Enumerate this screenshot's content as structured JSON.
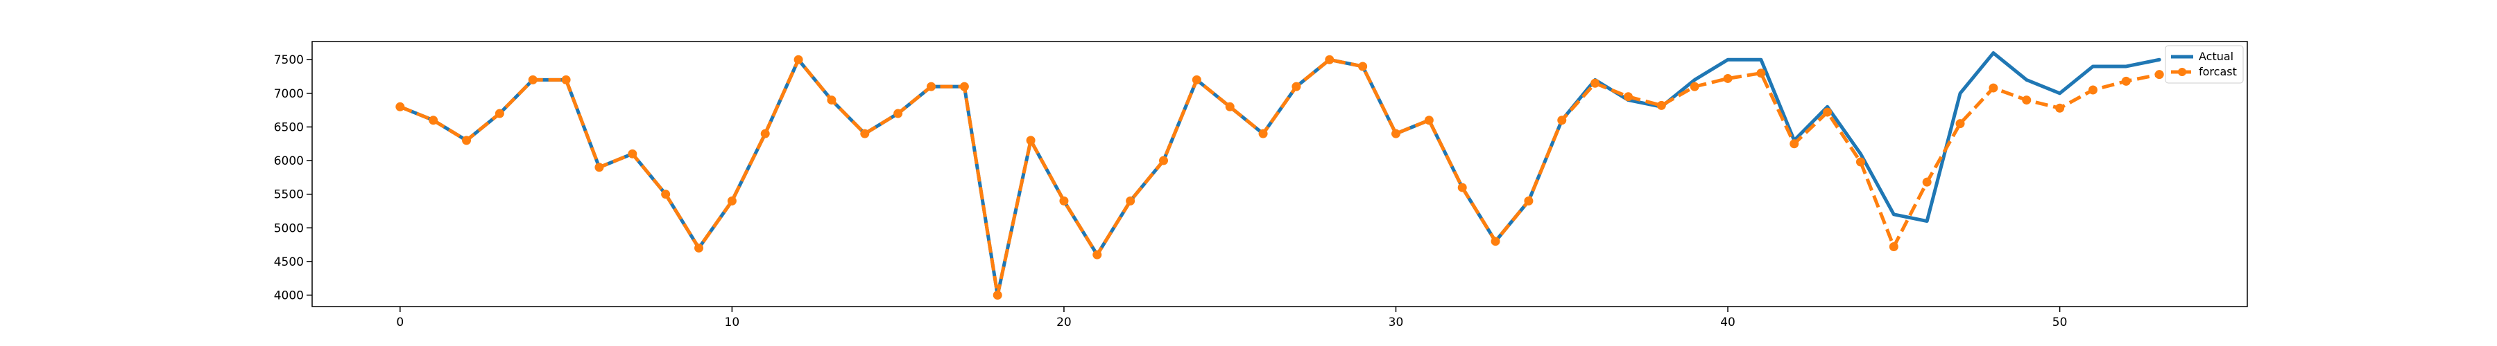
{
  "chart_data": {
    "type": "line",
    "x": [
      0,
      1,
      2,
      3,
      4,
      5,
      6,
      7,
      8,
      9,
      10,
      11,
      12,
      13,
      14,
      15,
      16,
      17,
      18,
      19,
      20,
      21,
      22,
      23,
      24,
      25,
      26,
      27,
      28,
      29,
      30,
      31,
      32,
      33,
      34,
      35,
      36,
      37,
      38,
      39,
      40,
      41,
      42,
      43,
      44,
      45,
      46,
      47,
      48,
      49,
      50,
      51,
      52,
      53
    ],
    "series": [
      {
        "name": "Actual",
        "color": "#1f77b4",
        "style": "solid",
        "values": [
          6800,
          6600,
          6300,
          6700,
          7200,
          7200,
          5900,
          6100,
          5500,
          4700,
          5400,
          6400,
          7500,
          6900,
          6400,
          6700,
          7100,
          7100,
          4000,
          6300,
          5400,
          4600,
          5400,
          6000,
          7200,
          6800,
          6400,
          7100,
          7500,
          7400,
          6400,
          6600,
          5600,
          4800,
          5400,
          6600,
          7200,
          6900,
          6800,
          7200,
          7500,
          7500,
          6300,
          6800,
          6100,
          5200,
          5100,
          7000,
          7600,
          7200,
          7000,
          7400,
          7400,
          7500
        ]
      },
      {
        "name": "forcast",
        "color": "#ff7f0e",
        "style": "dashed",
        "marker": "circle",
        "values": [
          6800,
          6600,
          6300,
          6700,
          7200,
          7200,
          5900,
          6100,
          5500,
          4700,
          5400,
          6400,
          7500,
          6900,
          6400,
          6700,
          7100,
          7100,
          4000,
          6300,
          5400,
          4600,
          5400,
          6000,
          7200,
          6800,
          6400,
          7100,
          7500,
          7400,
          6400,
          6600,
          5600,
          4800,
          5400,
          6600,
          7150,
          6950,
          6820,
          7100,
          7220,
          7300,
          6250,
          6720,
          5980,
          4720,
          5680,
          6550,
          7080,
          6900,
          6780,
          7050,
          7180,
          7280
        ]
      }
    ],
    "xticks": [
      0,
      10,
      20,
      30,
      40,
      50
    ],
    "yticks": [
      4000,
      4500,
      5000,
      5500,
      6000,
      6500,
      7000,
      7500
    ],
    "xlim": [
      -2.65,
      55.65
    ],
    "ylim": [
      3830,
      7770
    ],
    "title": "",
    "xlabel": "",
    "ylabel": "",
    "grid": false,
    "legend": "top-right"
  }
}
